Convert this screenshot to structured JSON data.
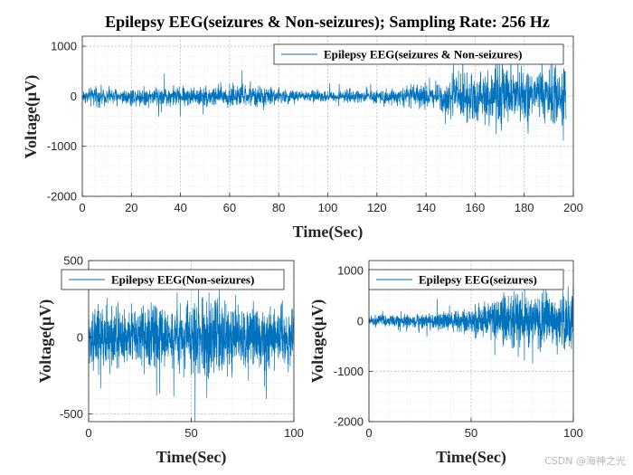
{
  "colors": {
    "line": "#0072bd",
    "axis": "#262626",
    "grid": "#d9d9d9",
    "background": "#ffffff"
  },
  "watermark": "CSDN @海神之光",
  "chart_data": [
    {
      "type": "line",
      "title": "Epilepsy EEG(seizures & Non-seizures); Sampling Rate: 256 Hz",
      "xlabel": "Time(Sec)",
      "ylabel": "Voltage(μV)",
      "xlim": [
        0,
        200
      ],
      "ylim": [
        -2000,
        1200
      ],
      "xticks": [
        0,
        20,
        40,
        60,
        80,
        100,
        120,
        140,
        160,
        180,
        200
      ],
      "yticks": [
        -2000,
        -1000,
        0,
        1000
      ],
      "xtick_labels": [
        "0",
        "20",
        "40",
        "60",
        "80",
        "100",
        "120",
        "140",
        "160",
        "180",
        "200"
      ],
      "ytick_labels": [
        "-2000",
        "-1000",
        "0",
        "1000"
      ],
      "grid": true,
      "legend": "top-right",
      "series": [
        {
          "name": "Epilepsy EEG(seizures & Non-seizures)",
          "x_range": [
            0,
            197
          ],
          "amplitude_envelope": [
            [
              0,
              120
            ],
            [
              5,
              150
            ],
            [
              15,
              130
            ],
            [
              30,
              170
            ],
            [
              45,
              160
            ],
            [
              60,
              200
            ],
            [
              70,
              170
            ],
            [
              85,
              110
            ],
            [
              100,
              90
            ],
            [
              115,
              100
            ],
            [
              130,
              150
            ],
            [
              140,
              200
            ],
            [
              150,
              320
            ],
            [
              158,
              420
            ],
            [
              165,
              480
            ],
            [
              172,
              520
            ],
            [
              180,
              420
            ],
            [
              190,
              440
            ],
            [
              197,
              550
            ]
          ]
        }
      ]
    },
    {
      "type": "line",
      "title": "",
      "xlabel": "Time(Sec)",
      "ylabel": "Voltage(μV)",
      "xlim": [
        0,
        100
      ],
      "ylim": [
        -550,
        500
      ],
      "xticks": [
        0,
        50,
        100
      ],
      "yticks": [
        -500,
        0,
        500
      ],
      "xtick_labels": [
        "0",
        "50",
        "100"
      ],
      "ytick_labels": [
        "-500",
        "0",
        "500"
      ],
      "grid": true,
      "legend": "top-right",
      "series": [
        {
          "name": "Epilepsy EEG(Non-seizures)",
          "x_range": [
            0,
            100
          ],
          "amplitude_envelope": [
            [
              0,
              160
            ],
            [
              10,
              190
            ],
            [
              20,
              150
            ],
            [
              30,
              170
            ],
            [
              40,
              140
            ],
            [
              50,
              180
            ],
            [
              60,
              210
            ],
            [
              70,
              190
            ],
            [
              80,
              150
            ],
            [
              90,
              160
            ],
            [
              100,
              150
            ]
          ]
        }
      ]
    },
    {
      "type": "line",
      "title": "",
      "xlabel": "Time(Sec)",
      "ylabel": "Voltage(μV)",
      "xlim": [
        0,
        100
      ],
      "ylim": [
        -2000,
        1200
      ],
      "xticks": [
        0,
        50,
        100
      ],
      "yticks": [
        -2000,
        -1000,
        0,
        1000
      ],
      "xtick_labels": [
        "0",
        "50",
        "100"
      ],
      "ytick_labels": [
        "-2000",
        "-1000",
        "0",
        "1000"
      ],
      "grid": true,
      "legend": "top-right",
      "series": [
        {
          "name": "Epilepsy EEG(seizures)",
          "x_range": [
            0,
            100
          ],
          "amplitude_envelope": [
            [
              0,
              90
            ],
            [
              20,
              100
            ],
            [
              40,
              150
            ],
            [
              50,
              220
            ],
            [
              60,
              330
            ],
            [
              70,
              460
            ],
            [
              80,
              430
            ],
            [
              90,
              470
            ],
            [
              100,
              560
            ]
          ]
        }
      ]
    }
  ]
}
